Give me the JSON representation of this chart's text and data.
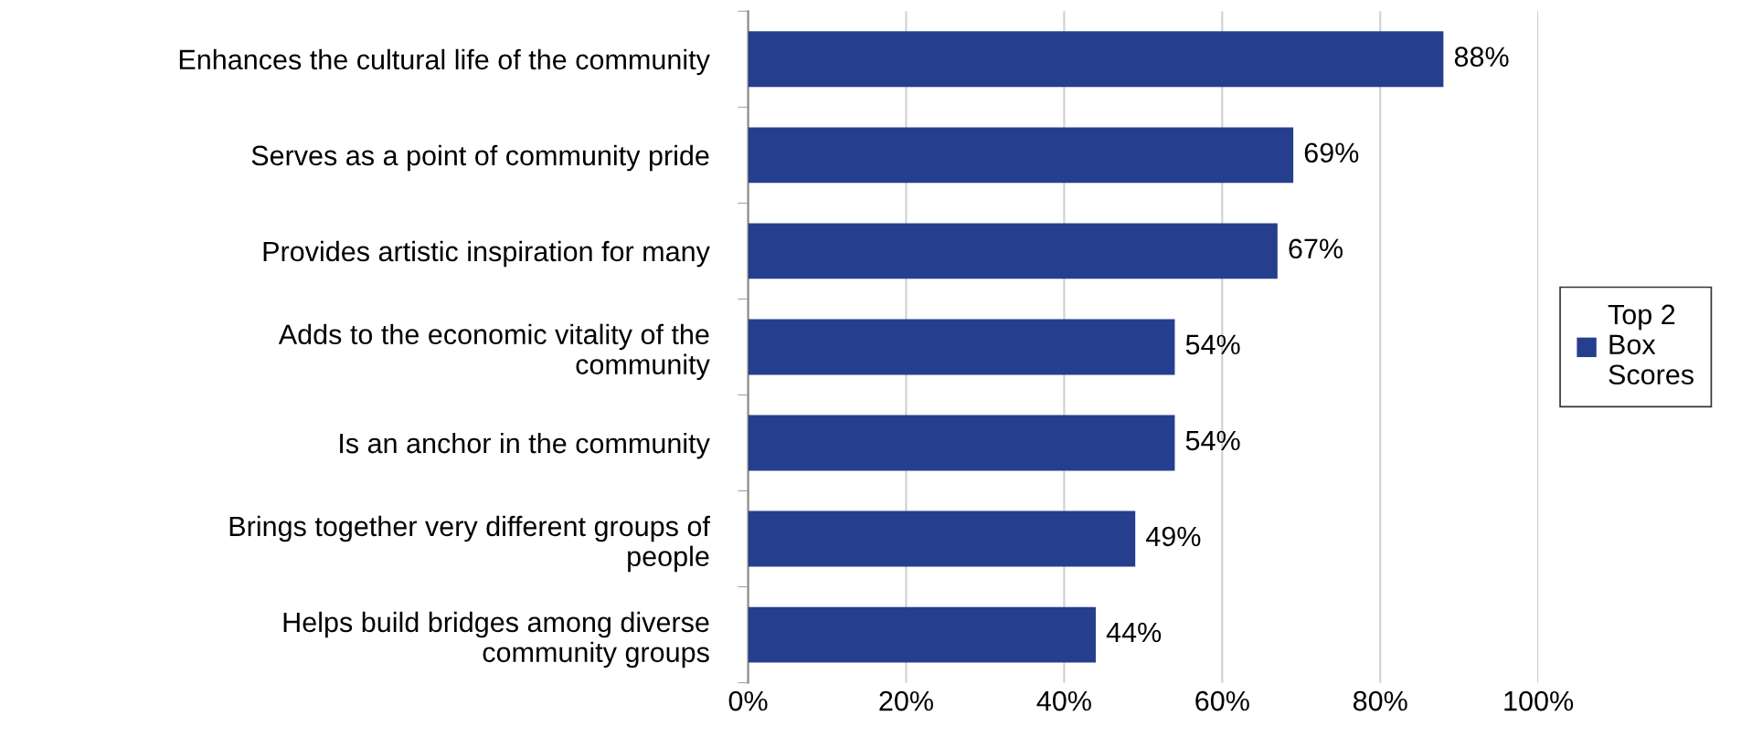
{
  "chart_data": {
    "type": "bar",
    "orientation": "horizontal",
    "categories": [
      "Enhances the cultural life of the community",
      "Serves as a point of community pride",
      "Provides artistic inspiration for many",
      "Adds to the economic vitality of the\ncommunity",
      "Is an anchor in the community",
      "Brings together very different groups of\npeople",
      "Helps build bridges among diverse\ncommunity groups"
    ],
    "series": [
      {
        "name": "Top 2\nBox\nScores",
        "color": "#253f8e",
        "values": [
          88,
          69,
          67,
          54,
          54,
          49,
          44
        ],
        "value_labels": [
          "88%",
          "69%",
          "67%",
          "54%",
          "54%",
          "49%",
          "44%"
        ]
      }
    ],
    "xlim": [
      0,
      100
    ],
    "xticks": [
      {
        "value": 0,
        "label": "0%"
      },
      {
        "value": 20,
        "label": "20%"
      },
      {
        "value": 40,
        "label": "40%"
      },
      {
        "value": 60,
        "label": "60%"
      },
      {
        "value": 80,
        "label": "80%"
      },
      {
        "value": 100,
        "label": "100%"
      }
    ],
    "grid": "x",
    "legend": "right"
  }
}
